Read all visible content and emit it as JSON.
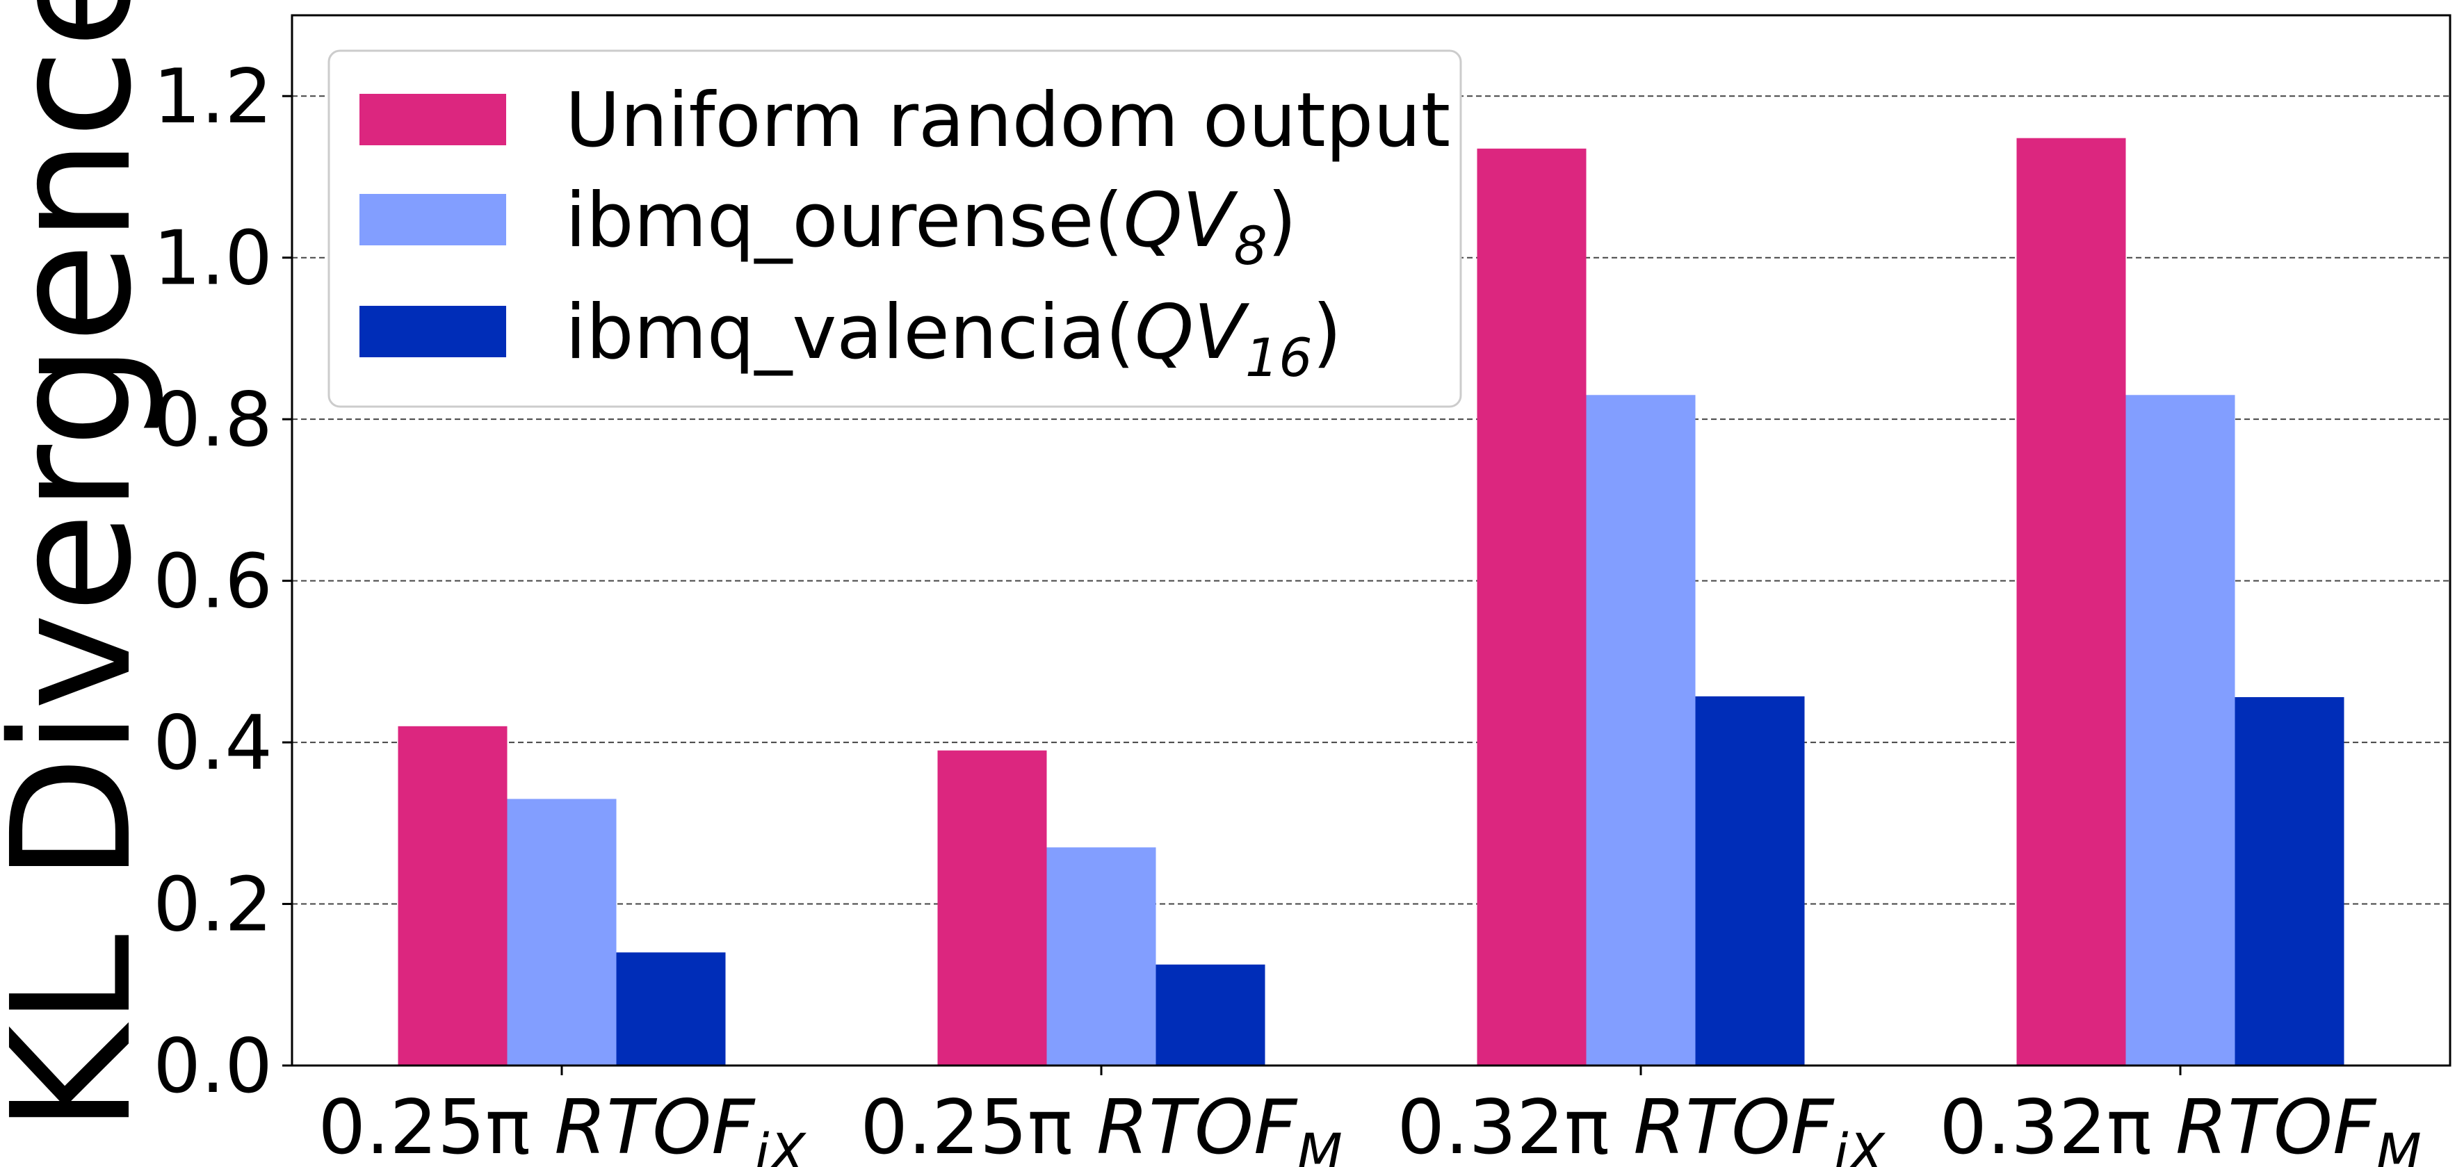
{
  "chart_data": {
    "type": "bar",
    "title": "",
    "xlabel": "",
    "ylabel": "KL Divergence",
    "ylim": [
      0,
      1.3
    ],
    "yticks": [
      "0.0",
      "0.2",
      "0.4",
      "0.6",
      "0.8",
      "1.0",
      "1.2"
    ],
    "grid": "horizontal dashed",
    "legend_position": "top-left",
    "categories": [
      {
        "prefix": "0.25π ",
        "main": "RTOF",
        "sub": "iX"
      },
      {
        "prefix": "0.25π ",
        "main": "RTOF",
        "sub": "M"
      },
      {
        "prefix": "0.32π ",
        "main": "RTOF",
        "sub": "iX"
      },
      {
        "prefix": "0.32π ",
        "main": "RTOF",
        "sub": "M"
      }
    ],
    "series": [
      {
        "name": "Uniform random output",
        "color": "#dc267f",
        "values": [
          0.42,
          0.39,
          1.135,
          1.148
        ]
      },
      {
        "name": "ibmq_ourense(QV8)",
        "label_plain": "ibmq_ourense(",
        "label_math": "QV",
        "label_sub": "8",
        "label_end": ")",
        "color": "#829eff",
        "values": [
          0.33,
          0.27,
          0.83,
          0.83
        ]
      },
      {
        "name": "ibmq_valencia(QV16)",
        "label_plain": "ibmq_valencia(",
        "label_math": "QV",
        "label_sub": "16",
        "label_end": ")",
        "color": "#002db8",
        "values": [
          0.14,
          0.125,
          0.457,
          0.456
        ]
      }
    ]
  }
}
